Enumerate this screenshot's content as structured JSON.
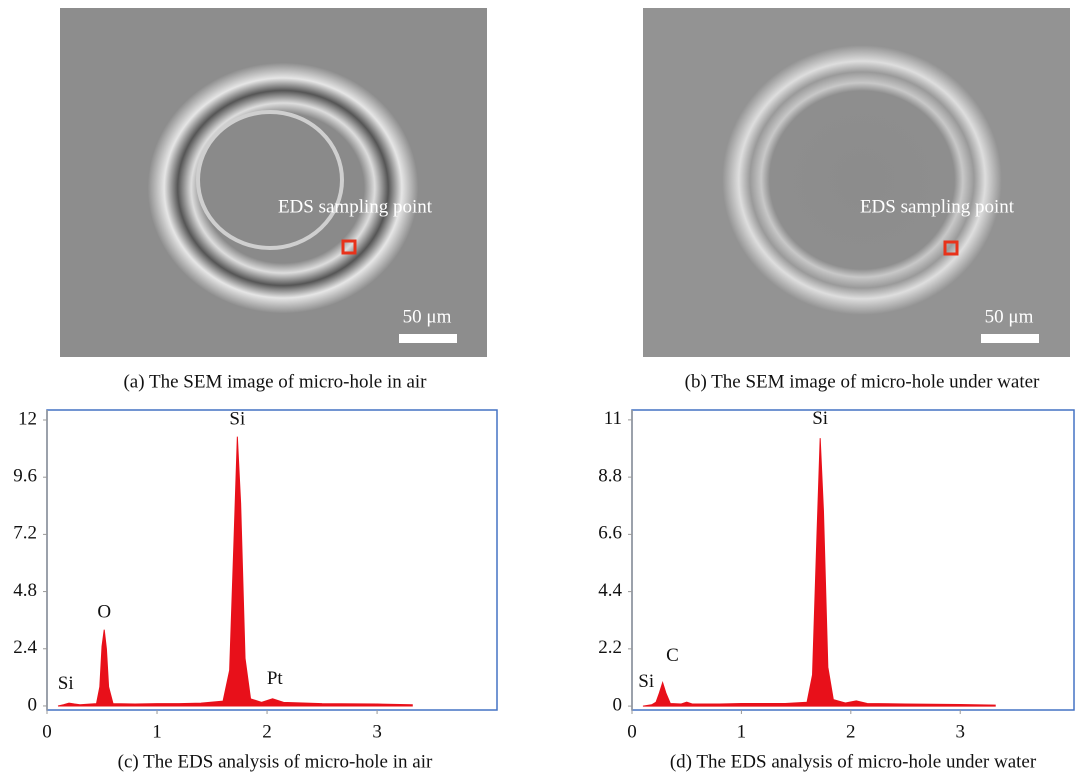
{
  "figures": [
    {
      "label_text": "EDS sampling point",
      "scale_text": "50 μm",
      "caption": "(a) The SEM image of micro-hole in air"
    },
    {
      "label_text": "EDS sampling point",
      "scale_text": "50 μm",
      "caption": "(b) The SEM image of micro-hole under water"
    }
  ],
  "chart_data": [
    {
      "type": "area",
      "caption": "(c) The EDS analysis of micro-hole in air",
      "color": "#e8101a",
      "frame_color": "#4472c4",
      "x": [
        0.1,
        0.15,
        0.2,
        0.25,
        0.3,
        0.45,
        0.48,
        0.5,
        0.52,
        0.54,
        0.56,
        0.6,
        0.8,
        1.0,
        1.2,
        1.4,
        1.6,
        1.66,
        1.7,
        1.73,
        1.76,
        1.8,
        1.85,
        1.95,
        2.05,
        2.15,
        2.5,
        3.0,
        3.32
      ],
      "values": [
        0,
        0.05,
        0.12,
        0.08,
        0.05,
        0.1,
        0.8,
        2.5,
        3.2,
        2.4,
        0.8,
        0.1,
        0.08,
        0.1,
        0.1,
        0.12,
        0.2,
        1.5,
        7.0,
        11.3,
        8.5,
        2.0,
        0.3,
        0.15,
        0.3,
        0.15,
        0.1,
        0.08,
        0.05
      ],
      "xlim": [
        0,
        4.09
      ],
      "ylim": [
        -0.17,
        12.42
      ],
      "xticks": [
        0,
        1,
        2,
        3
      ],
      "yticks": [
        0,
        2.4,
        4.8,
        7.2,
        9.6,
        12
      ],
      "peak_labels": [
        "Si",
        "O",
        "Si",
        "Pt"
      ]
    },
    {
      "type": "area",
      "caption": "(d) The EDS analysis of micro-hole under water",
      "color": "#e8101a",
      "frame_color": "#4472c4",
      "x": [
        0.1,
        0.18,
        0.22,
        0.25,
        0.28,
        0.31,
        0.35,
        0.45,
        0.5,
        0.55,
        0.8,
        1.0,
        1.2,
        1.4,
        1.6,
        1.65,
        1.69,
        1.72,
        1.75,
        1.79,
        1.84,
        1.95,
        2.05,
        2.15,
        2.5,
        3.0,
        3.32
      ],
      "values": [
        0,
        0.05,
        0.15,
        0.5,
        0.9,
        0.5,
        0.1,
        0.08,
        0.15,
        0.08,
        0.08,
        0.1,
        0.1,
        0.1,
        0.15,
        1.2,
        6.5,
        10.3,
        7.5,
        1.5,
        0.25,
        0.12,
        0.2,
        0.1,
        0.08,
        0.06,
        0.04
      ],
      "xlim": [
        0,
        4.04
      ],
      "ylim": [
        -0.15,
        11.38
      ],
      "xticks": [
        0,
        1,
        2,
        3
      ],
      "yticks": [
        0,
        2.2,
        4.4,
        6.6,
        8.8,
        11
      ],
      "peak_labels": [
        "Si",
        "C",
        "Si"
      ]
    }
  ]
}
